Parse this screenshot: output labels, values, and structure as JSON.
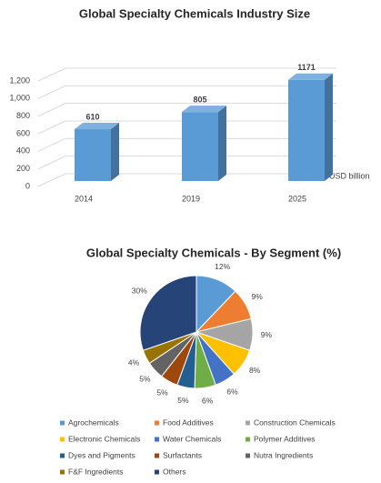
{
  "chart_data": [
    {
      "type": "bar",
      "title": "Global Specialty Chemicals Industry Size",
      "categories": [
        "2014",
        "2019",
        "2025"
      ],
      "values": [
        610,
        805,
        1171
      ],
      "color": "#5b9bd5",
      "side_color": "#41719c",
      "top_color": "#7fb1e0",
      "ylim": [
        0,
        1200
      ],
      "yticks": [
        0,
        200,
        400,
        600,
        800,
        {
          "value": 1000,
          "label": "1,000"
        },
        {
          "value": 1200,
          "label": "1,200"
        }
      ],
      "grid": true,
      "y_label": "USD billion"
    },
    {
      "type": "pie",
      "title": "Global Specialty Chemicals - By Segment (%)",
      "categories": [
        "Agrochemicals",
        "Food Additives",
        "Construction Chemicals",
        "Electronic Chemicals",
        "Water Chemicals",
        "Polymer Additives",
        "Dyes and Pigments",
        "Surfactants",
        "Nutra Ingredients",
        "F&F Ingredients",
        "Others"
      ],
      "values": [
        12,
        9,
        9,
        8,
        6,
        6,
        5,
        5,
        5,
        4,
        30
      ],
      "value_labels": [
        "12%",
        "9%",
        "9%",
        "8%",
        "6%",
        "6%",
        "5%",
        "5%",
        "5%",
        "4%",
        "30%"
      ],
      "colors": [
        "#5b9bd5",
        "#ed7d31",
        "#a5a5a5",
        "#ffc000",
        "#4472c4",
        "#70ad47",
        "#255e91",
        "#9e480e",
        "#636363",
        "#997300",
        "#264478"
      ],
      "legend": "bottom"
    }
  ]
}
